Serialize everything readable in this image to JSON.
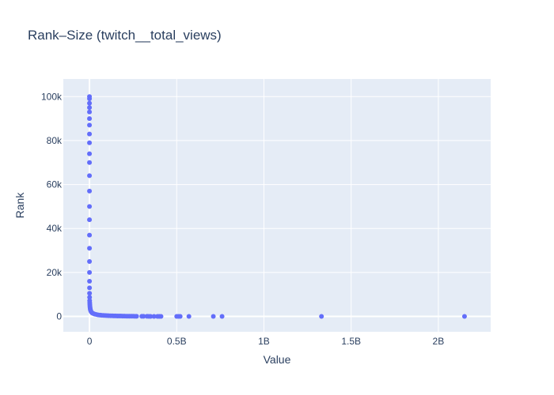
{
  "chart_data": {
    "type": "scatter",
    "title": "Rank–Size (twitch__total_views)",
    "xlabel": "Value",
    "ylabel": "Rank",
    "xlim": [
      -150000000,
      2300000000
    ],
    "ylim": [
      -7000,
      108000
    ],
    "x_ticks": [
      0,
      500000000,
      1000000000,
      1500000000,
      2000000000
    ],
    "x_tick_labels": [
      "0",
      "0.5B",
      "1B",
      "1.5B",
      "2B"
    ],
    "y_ticks": [
      0,
      20000,
      40000,
      60000,
      80000,
      100000
    ],
    "y_tick_labels": [
      "0",
      "20k",
      "40k",
      "60k",
      "80k",
      "100k"
    ],
    "grid": true,
    "legend": "none",
    "colors": {
      "marker": "#636efa",
      "plot_background": "#e5ecf6",
      "grid": "#ffffff",
      "text": "#2a3f5f"
    },
    "series": [
      {
        "x": [
          100,
          150,
          200,
          250,
          300,
          400,
          500,
          700,
          1000,
          1500,
          2000,
          3000,
          5000,
          8000,
          12000,
          20000,
          35000,
          60000,
          100000,
          160000,
          250000,
          400000,
          650000,
          1000000,
          1500000,
          2000000,
          2600000,
          3300000,
          4200000,
          5500000,
          7000000,
          9000000,
          12000000,
          16000000,
          22000000,
          30000000,
          40000000,
          50000000,
          60000000,
          70000000,
          80000000,
          90000000,
          100000000,
          110000000,
          120000000,
          130000000,
          140000000,
          150000000,
          160000000,
          170000000,
          180000000,
          190000000,
          200000000,
          210000000,
          220000000,
          230000000,
          240000000,
          250000000,
          260000000,
          270000000,
          300000000,
          310000000,
          330000000,
          340000000,
          350000000,
          370000000,
          390000000,
          400000000,
          410000000,
          500000000,
          510000000,
          520000000,
          570000000,
          710000000,
          760000000,
          1330000000,
          2150000000
        ],
        "y": [
          100000,
          99000,
          97000,
          95000,
          93000,
          90000,
          87000,
          83000,
          79000,
          74000,
          70000,
          64000,
          57000,
          50000,
          44000,
          37000,
          31000,
          25000,
          20000,
          16000,
          13000,
          10500,
          8700,
          7200,
          6200,
          5400,
          4700,
          4100,
          3500,
          3000,
          2600,
          2200,
          1850,
          1550,
          1300,
          1050,
          850,
          700,
          600,
          520,
          460,
          410,
          370,
          330,
          300,
          270,
          245,
          220,
          200,
          180,
          165,
          150,
          135,
          120,
          108,
          96,
          85,
          75,
          66,
          58,
          45,
          40,
          34,
          29,
          25,
          21,
          17,
          14,
          12,
          9,
          8,
          7,
          5,
          4,
          3,
          2,
          1
        ]
      }
    ]
  }
}
